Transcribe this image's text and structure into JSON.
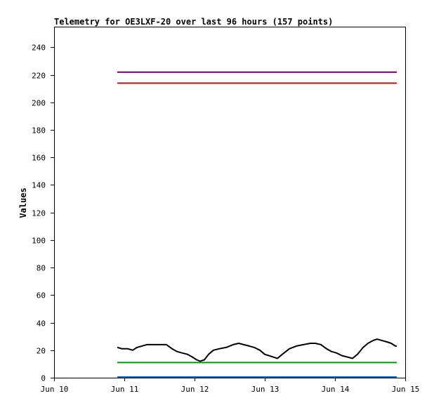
{
  "chart_data": {
    "type": "line",
    "title": "Telemetry for OE3LXF-20 over last 96 hours (157 points)",
    "xlabel": "",
    "ylabel": "Values",
    "ylim": [
      0,
      255
    ],
    "y_ticks": [
      0,
      20,
      40,
      60,
      80,
      100,
      120,
      140,
      160,
      180,
      200,
      220,
      240
    ],
    "x_ticks": [
      "Jun 10",
      "Jun 11",
      "Jun 12",
      "Jun 13",
      "Jun 14",
      "Jun 15"
    ],
    "xlim": [
      0,
      5
    ],
    "grid": false,
    "legend": "none",
    "series": [
      {
        "color": "#660066",
        "x": [
          0.9,
          4.88
        ],
        "y": [
          222,
          222
        ]
      },
      {
        "color": "#ff0000",
        "x": [
          0.9,
          4.88
        ],
        "y": [
          214,
          214
        ]
      },
      {
        "color": "#000000",
        "x": [
          0.9,
          0.97,
          1.05,
          1.12,
          1.18,
          1.25,
          1.32,
          1.4,
          1.5,
          1.6,
          1.68,
          1.75,
          1.82,
          1.9,
          1.97,
          2.03,
          2.08,
          2.14,
          2.2,
          2.27,
          2.35,
          2.45,
          2.55,
          2.63,
          2.7,
          2.78,
          2.85,
          2.93,
          3.0,
          3.06,
          3.12,
          3.18,
          3.25,
          3.35,
          3.45,
          3.55,
          3.65,
          3.72,
          3.8,
          3.88,
          3.95,
          4.02,
          4.1,
          4.18,
          4.25,
          4.32,
          4.4,
          4.47,
          4.54,
          4.6,
          4.67,
          4.74,
          4.8,
          4.86,
          4.88
        ],
        "y": [
          22,
          21,
          21,
          20,
          22,
          23,
          24,
          24,
          24,
          24,
          21,
          19,
          18,
          17,
          15,
          13,
          12,
          13,
          17,
          20,
          21,
          22,
          24,
          25,
          24,
          23,
          22,
          20,
          17,
          16,
          15,
          14,
          17,
          21,
          23,
          24,
          25,
          25,
          24,
          21,
          19,
          18,
          16,
          15,
          14,
          17,
          22,
          25,
          27,
          28,
          27,
          26,
          25,
          23,
          23
        ]
      },
      {
        "color": "#009900",
        "x": [
          0.9,
          4.88
        ],
        "y": [
          11,
          11
        ]
      },
      {
        "color": "#0066cc",
        "x": [
          0.9,
          4.88
        ],
        "y": [
          0.5,
          0.5
        ]
      }
    ]
  }
}
